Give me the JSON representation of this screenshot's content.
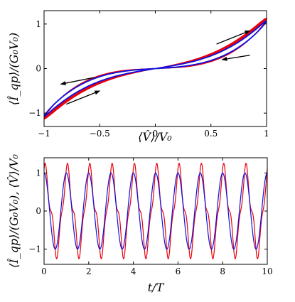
{
  "colors": {
    "red": "#e8000b",
    "blue": "#1010e0",
    "axis": "#000000",
    "arrow": "#000000"
  },
  "chart_data": [
    {
      "type": "line",
      "title": "",
      "xlabel": "⟨V̂⟩/V₀",
      "ylabel": "⟨Î_qp⟩/(G₀V₀)",
      "xlim": [
        -1,
        1
      ],
      "ylim": [
        -1.3,
        1.3
      ],
      "xticks": [
        -1,
        -0.5,
        0,
        0.5,
        1
      ],
      "xtick_labels": [
        "−1",
        "−0.5",
        "0",
        "0.5",
        "1"
      ],
      "yticks": [
        -1,
        0,
        1
      ],
      "ytick_labels": [
        "−1",
        "0",
        "1"
      ],
      "grid": false,
      "series": [
        {
          "color": "red",
          "kind": "transient pinched hysteresis loops",
          "loops": [
            {
              "amplitude_current": 1.28,
              "loop_width": 0.55
            },
            {
              "amplitude_current": 1.27,
              "loop_width": 0.52
            },
            {
              "amplitude_current": 1.26,
              "loop_width": 0.49
            },
            {
              "amplitude_current": 1.25,
              "loop_width": 0.46
            },
            {
              "amplitude_current": 1.24,
              "loop_width": 0.43
            },
            {
              "amplitude_current": 1.23,
              "loop_width": 0.4
            }
          ]
        },
        {
          "color": "blue",
          "kind": "steady-state pinched hysteresis loop",
          "points": [
            [
              -1.0,
              -1.0
            ],
            [
              -0.95,
              -1.2
            ],
            [
              -0.8,
              -1.1
            ],
            [
              -0.6,
              -0.55
            ],
            [
              -0.4,
              -0.2
            ],
            [
              -0.2,
              -0.06
            ],
            [
              0,
              0
            ],
            [
              0.2,
              0.06
            ],
            [
              0.4,
              0.2
            ],
            [
              0.6,
              0.55
            ],
            [
              0.8,
              1.1
            ],
            [
              0.95,
              1.2
            ],
            [
              1.0,
              1.0
            ],
            [
              0.95,
              0.75
            ],
            [
              0.8,
              0.45
            ],
            [
              0.6,
              0.3
            ],
            [
              0.4,
              0.2
            ],
            [
              0.2,
              0.1
            ],
            [
              0,
              0
            ],
            [
              -0.2,
              -0.1
            ],
            [
              -0.4,
              -0.2
            ],
            [
              -0.6,
              -0.3
            ],
            [
              -0.8,
              -0.45
            ],
            [
              -0.95,
              -0.75
            ],
            [
              -1.0,
              -1.0
            ]
          ]
        }
      ],
      "arrows": [
        {
          "from": [
            0.55,
            0.55
          ],
          "to": [
            0.85,
            0.85
          ]
        },
        {
          "from": [
            0.85,
            0.3
          ],
          "to": [
            0.6,
            0.2
          ]
        },
        {
          "from": [
            -0.55,
            -0.2
          ],
          "to": [
            -0.85,
            -0.35
          ]
        },
        {
          "from": [
            -0.8,
            -0.8
          ],
          "to": [
            -0.5,
            -0.5
          ]
        }
      ]
    },
    {
      "type": "line",
      "title": "",
      "xlabel": "t/T",
      "ylabel": "⟨Î_qp⟩/(G₀V₀), ⟨V̂⟩/V₀",
      "xlim": [
        0,
        10
      ],
      "ylim": [
        -1.4,
        1.4
      ],
      "xticks": [
        0,
        2,
        4,
        6,
        8,
        10
      ],
      "xtick_labels": [
        "0",
        "2",
        "4",
        "6",
        "8",
        "10"
      ],
      "yticks": [
        -1,
        0,
        1
      ],
      "ytick_labels": [
        "−1",
        "0",
        "1"
      ],
      "grid": false,
      "series": [
        {
          "color": "red",
          "kind": "current",
          "period": 1,
          "amplitude": 1.25,
          "start_phase": 0.25
        },
        {
          "color": "blue",
          "kind": "voltage",
          "period": 1,
          "amplitude": 1.0,
          "start_phase": 0.25
        }
      ]
    }
  ]
}
